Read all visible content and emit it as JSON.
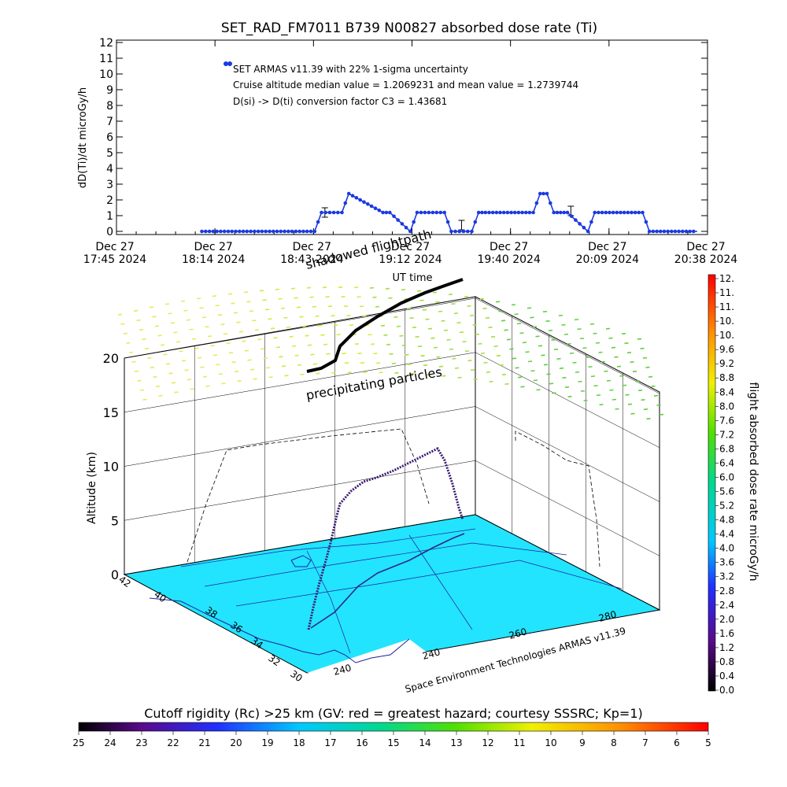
{
  "chart_data": [
    {
      "type": "line",
      "title": "SET_RAD_FM7011   B739 N00827 absorbed dose rate (Ti)",
      "ylabel": "dD(Ti)/dt microGy/h",
      "xlabel": "UT time",
      "legend": "SET ARMAS v11.39 with 22% 1-sigma uncertainty",
      "annotations": [
        "Cruise altitude median value = 1.2069231 and mean value = 1.2739744",
        "D(si) -> D(ti) conversion factor C3 = 1.43681"
      ],
      "ylim": [
        0,
        12
      ],
      "yticks": [
        "0",
        "1",
        "2",
        "3",
        "4",
        "5",
        "6",
        "7",
        "8",
        "9",
        "10",
        "11",
        "12"
      ],
      "xlim_minutes": [
        0,
        173
      ],
      "xticks": [
        {
          "day": "Dec 27",
          "time": "17:45 2024"
        },
        {
          "day": "Dec 27",
          "time": "18:14 2024"
        },
        {
          "day": "Dec 27",
          "time": "18:43 2024"
        },
        {
          "day": "Dec 27",
          "time": "19:12 2024"
        },
        {
          "day": "Dec 27",
          "time": "19:40 2024"
        },
        {
          "day": "Dec 27",
          "time": "20:09 2024"
        },
        {
          "day": "Dec 27",
          "time": "20:38 2024"
        }
      ],
      "series": [
        {
          "x": [
            25,
            58,
            60,
            66,
            68,
            78,
            80,
            86,
            88,
            96,
            98,
            104,
            106,
            108,
            122,
            124,
            126,
            128,
            132,
            138,
            140,
            154,
            156,
            170
          ],
          "y": [
            0,
            0,
            1.2,
            1.2,
            2.4,
            1.2,
            1.2,
            0,
            1.2,
            1.2,
            0,
            0,
            1.2,
            1.2,
            1.2,
            2.4,
            2.4,
            1.2,
            1.2,
            0,
            1.2,
            1.2,
            0,
            0
          ]
        }
      ],
      "error_bars": [
        {
          "x": 61,
          "y": 1.2,
          "err": 0.3
        },
        {
          "x": 101,
          "y": 0.4,
          "err": 0.3
        },
        {
          "x": 133,
          "y": 1.3,
          "err": 0.3
        }
      ]
    },
    {
      "type": "scatter",
      "zlabel": "Altitude (km)",
      "zlim": [
        0,
        20
      ],
      "zticks": [
        "0",
        "5",
        "10",
        "15",
        "20"
      ],
      "lat_ticks": [
        "30",
        "32",
        "34",
        "36",
        "38",
        "40",
        "42"
      ],
      "lon_ticks": [
        "240",
        "240",
        "260",
        "280"
      ],
      "credit": "Space Environment Technologies ARMAS v11.39"
    }
  ],
  "labels": {
    "shadowed_flightpath": "shadowed flightpath",
    "precipitating_particles": "precipitating particles"
  },
  "colorbars": {
    "dose": {
      "label": "flight absorbed dose rate microGy/h",
      "ticks": [
        "0.0",
        "0.4",
        "0.8",
        "1.2",
        "1.6",
        "2.0",
        "2.4",
        "2.8",
        "3.2",
        "3.6",
        "4.0",
        "4.4",
        "4.8",
        "5.2",
        "5.6",
        "6.0",
        "6.4",
        "6.8",
        "7.2",
        "7.6",
        "8.0",
        "8.4",
        "8.8",
        "9.2",
        "9.6",
        "10.",
        "10.",
        "11.",
        "11.",
        "12."
      ]
    },
    "rigidity": {
      "label": "Cutoff rigidity (Rc) >25 km (GV: red = greatest hazard; courtesy SSSRC; Kp=1)",
      "ticks": [
        "25",
        "24",
        "23",
        "22",
        "21",
        "20",
        "19",
        "18",
        "17",
        "16",
        "15",
        "14",
        "13",
        "12",
        "11",
        "10",
        "9",
        "8",
        "7",
        "6",
        "5"
      ]
    }
  },
  "colors": {
    "series": "#1a3ae0",
    "floor": "#22e4ff",
    "flight_path": "#3a1a70"
  }
}
